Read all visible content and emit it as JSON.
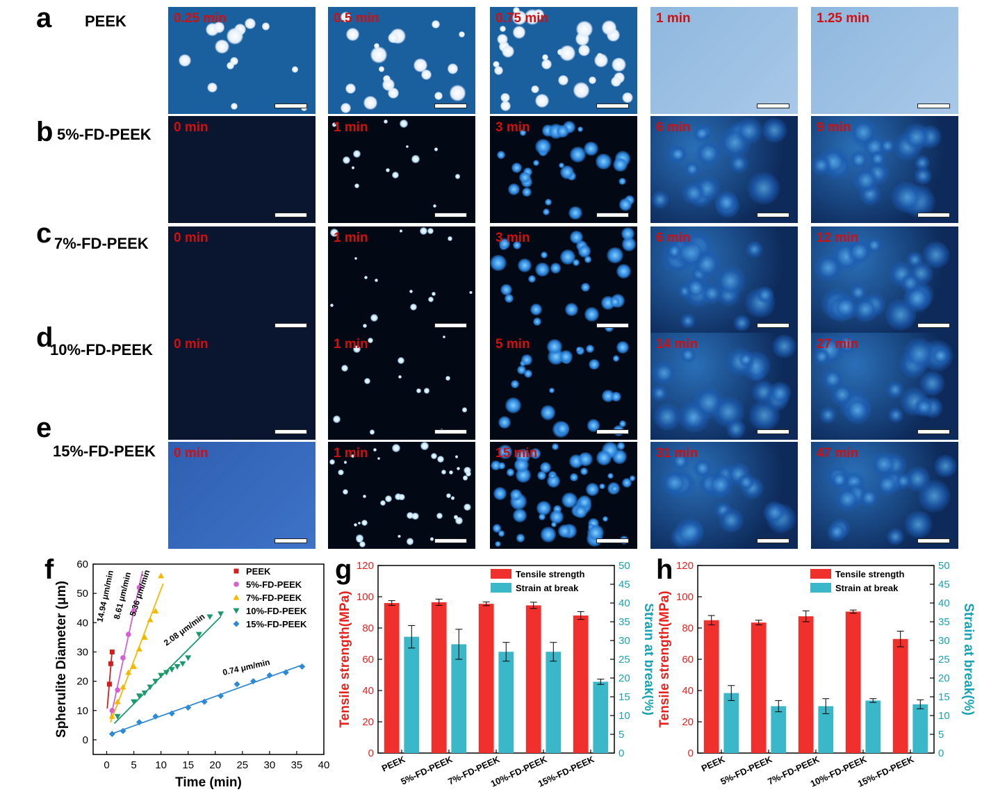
{
  "panels": {
    "a": "a",
    "b": "b",
    "c": "c",
    "d": "d",
    "e": "e",
    "f": "f",
    "g": "g",
    "h": "h"
  },
  "rows": [
    {
      "label": "PEEK",
      "times": [
        "0.25 min",
        "0.5 min",
        "0.75 min",
        "1 min",
        "1.25 min"
      ],
      "bg": "#1a5f9e",
      "style": "light",
      "density": [
        14,
        20,
        34,
        0,
        0
      ]
    },
    {
      "label": "5%-FD-PEEK",
      "times": [
        "0 min",
        "1 min",
        "3 min",
        "6 min",
        "9 min"
      ],
      "bg": "#0a1a33",
      "style": "dark",
      "density": [
        0,
        14,
        30,
        0,
        0
      ]
    },
    {
      "label": "7%-FD-PEEK",
      "times": [
        "0 min",
        "1 min",
        "3 min",
        "6 min",
        "12 min"
      ],
      "bg": "#0a1a33",
      "style": "dark",
      "density": [
        0,
        16,
        30,
        0,
        0
      ]
    },
    {
      "label": "10%-FD-PEEK",
      "times": [
        "0 min",
        "1 min",
        "5 min",
        "14 min",
        "27 min"
      ],
      "bg": "#0a1a33",
      "style": "dark",
      "density": [
        0,
        14,
        26,
        0,
        0
      ]
    },
    {
      "label": "15%-FD-PEEK",
      "times": [
        "0 min",
        "1 min",
        "15 min",
        "31 min",
        "47 min"
      ],
      "bg": "#0a1a33",
      "style": "dark",
      "density": [
        0,
        40,
        60,
        0,
        0
      ]
    }
  ],
  "chart_data": [
    {
      "type": "scatter",
      "panel": "f",
      "xlabel": "Time (min)",
      "ylabel": "Spherulite Diameter (μm)",
      "xlim": [
        -2.5,
        40
      ],
      "ylim": [
        -5,
        60
      ],
      "xticks": [
        0,
        5,
        10,
        15,
        20,
        25,
        30,
        35,
        40
      ],
      "yticks": [
        0,
        10,
        20,
        30,
        40,
        50,
        60
      ],
      "legend_position": "top-right",
      "series": [
        {
          "name": "PEEK",
          "color": "#d01f1f",
          "marker": "square",
          "rate": "14.94 μm/min",
          "x": [
            0.5,
            0.75,
            1.0
          ],
          "y": [
            19,
            26,
            30
          ]
        },
        {
          "name": "5%-FD-PEEK",
          "color": "#d55fd5",
          "marker": "circle",
          "rate": "8.61 μm/min",
          "x": [
            1,
            2,
            3,
            4,
            5,
            6
          ],
          "y": [
            10,
            17,
            28,
            36,
            44,
            52
          ]
        },
        {
          "name": "7%-FD-PEEK",
          "color": "#f5b800",
          "marker": "triangle-up",
          "rate": "5.36 μm/min",
          "x": [
            1,
            2,
            3,
            4,
            5,
            6,
            7,
            8,
            9,
            10
          ],
          "y": [
            8,
            13,
            18,
            23,
            25,
            31,
            35,
            41,
            44,
            56
          ]
        },
        {
          "name": "10%-FD-PEEK",
          "color": "#1a9a6a",
          "marker": "triangle-down",
          "rate": "2.08 μm/min",
          "x": [
            2,
            5,
            6,
            7,
            8,
            9,
            10,
            11,
            12,
            13,
            14,
            15,
            17,
            19,
            21
          ],
          "y": [
            8,
            13,
            15,
            16,
            18,
            20,
            22,
            23,
            24,
            25,
            26,
            28,
            36,
            42,
            43
          ]
        },
        {
          "name": "15%-FD-PEEK",
          "color": "#2e8ad6",
          "marker": "diamond",
          "rate": "0.74 μm/min",
          "x": [
            1,
            3,
            6,
            9,
            12,
            15,
            18,
            21,
            24,
            27,
            30,
            33,
            36
          ],
          "y": [
            2,
            3,
            6,
            8,
            9,
            11,
            13,
            15,
            19,
            20,
            22,
            23,
            25
          ]
        }
      ]
    },
    {
      "type": "bar",
      "panel": "g",
      "categories": [
        "PEEK",
        "5%-FD-PEEK",
        "7%-FD-PEEK",
        "10%-FD-PEEK",
        "15%-FD-PEEK"
      ],
      "ylabel_left": "Tensile strength(MPa)",
      "ylabel_right": "Strain at break(%)",
      "ylim_left": [
        0,
        120
      ],
      "ylim_right": [
        0,
        50
      ],
      "yticks_left": [
        0,
        20,
        40,
        60,
        80,
        100,
        120
      ],
      "yticks_right": [
        0,
        5,
        10,
        15,
        20,
        25,
        30,
        35,
        40,
        45,
        50
      ],
      "legend_position": "top-right",
      "series": [
        {
          "name": "Tensile strength",
          "axis": "left",
          "color": "#f0302d",
          "values": [
            96,
            96.5,
            95.5,
            94.5,
            88
          ],
          "errors": [
            1.5,
            2,
            1.2,
            2,
            2.5
          ]
        },
        {
          "name": "Strain at break",
          "axis": "right",
          "color": "#3ab7c8",
          "values": [
            31,
            29,
            27,
            27,
            19
          ],
          "errors": [
            3,
            4,
            2.5,
            2.5,
            0.7
          ]
        }
      ]
    },
    {
      "type": "bar",
      "panel": "h",
      "categories": [
        "PEEK",
        "5%-FD-PEEK",
        "7%-FD-PEEK",
        "10%-FD-PEEK",
        "15%-FD-PEEK"
      ],
      "ylabel_left": "Tensile strength(MPa)",
      "ylabel_right": "Strain at break(%)",
      "ylim_left": [
        0,
        120
      ],
      "ylim_right": [
        0,
        50
      ],
      "yticks_left": [
        0,
        20,
        40,
        60,
        80,
        100,
        120
      ],
      "yticks_right": [
        0,
        5,
        10,
        15,
        20,
        25,
        30,
        35,
        40,
        45,
        50
      ],
      "legend_position": "top-right",
      "series": [
        {
          "name": "Tensile strength",
          "axis": "left",
          "color": "#f0302d",
          "values": [
            85,
            83.5,
            87.5,
            90.5,
            73
          ],
          "errors": [
            3,
            1.5,
            3.5,
            1,
            5
          ]
        },
        {
          "name": "Strain at break",
          "axis": "right",
          "color": "#3ab7c8",
          "values": [
            16,
            12.5,
            12.5,
            14,
            13
          ],
          "errors": [
            2,
            1.5,
            2,
            0.5,
            1.2
          ]
        }
      ]
    }
  ]
}
